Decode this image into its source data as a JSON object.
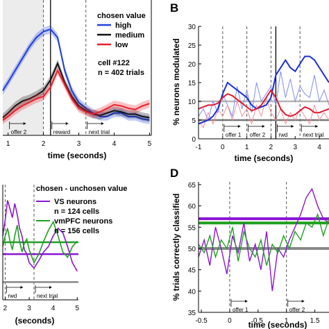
{
  "chart_data": [
    {
      "panel": "A",
      "type": "line",
      "xlabel": "time (seconds)",
      "xlim": [
        0.85,
        5.05
      ],
      "ylim": [
        0,
        1
      ],
      "x_ticks": [
        "1",
        "2",
        "3",
        "4",
        "5"
      ],
      "shaded_region": [
        0.85,
        2.0
      ],
      "event_lines": [
        2.0,
        2.2,
        3.2
      ],
      "event_labels": [
        "offer 2",
        "reward",
        "next trial"
      ],
      "legend_title": "chosen value",
      "annotations": [
        "cell #122",
        "n = 402 trials"
      ],
      "colors": {
        "high": "#1f3fe0",
        "medium": "#111111",
        "low": "#e8202a"
      },
      "series": [
        {
          "name": "high",
          "x": [
            0.85,
            1.0,
            1.2,
            1.4,
            1.6,
            1.8,
            2.0,
            2.2,
            2.4,
            2.6,
            2.8,
            3.0,
            3.2,
            3.4,
            3.6,
            3.8,
            4.0,
            4.2,
            4.4,
            4.6,
            4.8,
            5.0
          ],
          "values": [
            0.35,
            0.42,
            0.52,
            0.62,
            0.72,
            0.8,
            0.85,
            0.87,
            0.8,
            0.52,
            0.35,
            0.25,
            0.2,
            0.16,
            0.13,
            0.13,
            0.16,
            0.16,
            0.13,
            0.13,
            0.11,
            0.1
          ]
        },
        {
          "name": "medium",
          "x": [
            0.85,
            1.0,
            1.2,
            1.4,
            1.6,
            1.8,
            2.0,
            2.2,
            2.4,
            2.6,
            2.8,
            3.0,
            3.2,
            3.4,
            3.6,
            3.8,
            4.0,
            4.2,
            4.4,
            4.6,
            4.8,
            5.0
          ],
          "values": [
            0.12,
            0.16,
            0.22,
            0.26,
            0.28,
            0.31,
            0.35,
            0.44,
            0.58,
            0.42,
            0.3,
            0.22,
            0.18,
            0.15,
            0.14,
            0.16,
            0.18,
            0.17,
            0.15,
            0.15,
            0.13,
            0.12
          ]
        },
        {
          "name": "low",
          "x": [
            0.85,
            1.0,
            1.2,
            1.4,
            1.6,
            1.8,
            2.0,
            2.2,
            2.4,
            2.6,
            2.8,
            3.0,
            3.2,
            3.4,
            3.6,
            3.8,
            4.0,
            4.2,
            4.4,
            4.6,
            4.8,
            5.0
          ],
          "values": [
            0.1,
            0.13,
            0.18,
            0.22,
            0.25,
            0.28,
            0.3,
            0.38,
            0.52,
            0.4,
            0.28,
            0.2,
            0.17,
            0.15,
            0.17,
            0.2,
            0.23,
            0.22,
            0.2,
            0.19,
            0.22,
            0.24
          ]
        }
      ]
    },
    {
      "panel": "B",
      "type": "line",
      "ylabel": "% neurons modulated",
      "xlabel": "time (seconds)",
      "xlim": [
        -1,
        4.4
      ],
      "ylim": [
        0,
        30
      ],
      "x_ticks": [
        "-1",
        "0",
        "1",
        "2",
        "3",
        "4"
      ],
      "y_ticks": [
        "0",
        "5",
        "10",
        "15",
        "20",
        "25",
        "30"
      ],
      "event_lines": [
        0,
        1,
        2,
        2.2,
        3.2
      ],
      "event_labels": [
        "offer 1",
        "offer 2",
        "rwd",
        "next trial"
      ],
      "reference_lines": [
        {
          "y": 10,
          "color": "#b3b3b3"
        },
        {
          "y": 5,
          "color": "#777777"
        }
      ],
      "colors": {
        "blue": "#1a2fd6",
        "red": "#e01b2d",
        "light_blue": "#7d8cf5",
        "light_red": "#f0909a"
      },
      "series": [
        {
          "name": "",
          "x": [
            -1,
            -0.8,
            -0.6,
            -0.4,
            -0.2,
            0,
            0.2,
            0.4,
            0.6,
            0.8,
            1.0,
            1.2,
            1.4,
            1.6,
            1.8,
            2.0,
            2.2,
            2.4,
            2.6,
            2.8,
            3.0,
            3.2,
            3.4,
            3.6,
            3.8,
            4.0,
            4.2,
            4.4
          ],
          "values": [
            4,
            4.5,
            5,
            6,
            8,
            12,
            15,
            14,
            13,
            12,
            11,
            9,
            8,
            8.5,
            9,
            11,
            17,
            19,
            21,
            19,
            18,
            20,
            22,
            22,
            21,
            19,
            17,
            15
          ]
        },
        {
          "name": "",
          "x": [
            -1,
            -0.8,
            -0.6,
            -0.4,
            -0.2,
            0,
            0.2,
            0.4,
            0.6,
            0.8,
            1.0,
            1.2,
            1.4,
            1.6,
            1.8,
            2.0,
            2.2,
            2.4,
            2.6,
            2.8,
            3.0,
            3.2,
            3.4,
            3.6,
            3.8,
            4.0,
            4.2,
            4.4
          ],
          "values": [
            8,
            8.5,
            9,
            9,
            9.5,
            11,
            12,
            11.5,
            10.5,
            9.5,
            8.5,
            7.5,
            8,
            9,
            11,
            13,
            11,
            8,
            6.5,
            6,
            6.5,
            7.5,
            8.5,
            8,
            7,
            7,
            7.5,
            8
          ]
        },
        {
          "name": "",
          "x": [
            -1,
            -0.8,
            -0.6,
            -0.4,
            -0.2,
            0,
            0.2,
            0.4,
            0.6,
            0.8,
            1.0,
            1.2,
            1.4,
            1.6,
            1.8,
            2.0,
            2.2,
            2.4,
            2.6,
            2.8,
            3.0,
            3.2,
            3.4,
            3.6,
            3.8,
            4.0,
            4.2,
            4.4
          ],
          "values": [
            6,
            8,
            5,
            10,
            7,
            12,
            9,
            6,
            14,
            8,
            13,
            7,
            15,
            10,
            12,
            14,
            9,
            18,
            11,
            16,
            10,
            14,
            12,
            11,
            17,
            10,
            13,
            9
          ]
        },
        {
          "name": "",
          "x": [
            -1,
            -0.8,
            -0.6,
            -0.4,
            -0.2,
            0,
            0.2,
            0.4,
            0.6,
            0.8,
            1.0,
            1.2,
            1.4,
            1.6,
            1.8,
            2.0,
            2.2,
            2.4,
            2.6,
            2.8,
            3.0,
            3.2,
            3.4,
            3.6,
            3.8,
            4.0,
            4.2,
            4.4
          ],
          "values": [
            5,
            3,
            7,
            4,
            8,
            6,
            9,
            5,
            10,
            6,
            8,
            4,
            9,
            6,
            11,
            7,
            5,
            8,
            4,
            7,
            5,
            8,
            6,
            4,
            9,
            5,
            7,
            5
          ]
        }
      ]
    },
    {
      "panel": "C",
      "type": "line",
      "xlabel": "(seconds)",
      "xlim": [
        1.9,
        5.05
      ],
      "ylim": [
        0,
        1
      ],
      "x_ticks": [
        "2",
        "3",
        "4",
        "5"
      ],
      "event_lines": [
        2.0,
        3.2
      ],
      "event_labels": [
        "rwd",
        "next trial"
      ],
      "legend_title": "chosen - unchosen value",
      "colors": {
        "vs": "#8a14d4",
        "vmpfc": "#1ea01e"
      },
      "reference_lines": [
        {
          "y": 0.49,
          "color": "#1ea01e"
        },
        {
          "y": 0.38,
          "color": "#8a14d4"
        },
        {
          "y": 0.12,
          "color": "#888888"
        }
      ],
      "series": [
        {
          "name": "VS neurons",
          "legend": "n = 124 cells",
          "x": [
            1.9,
            2.0,
            2.1,
            2.2,
            2.3,
            2.4,
            2.5,
            2.6,
            2.7,
            2.8,
            2.9,
            3.0,
            3.2,
            3.4,
            3.6,
            3.8,
            4.0,
            4.2,
            4.4,
            4.6,
            4.8,
            5.0
          ],
          "values": [
            0.55,
            0.7,
            0.88,
            0.8,
            0.72,
            0.85,
            0.75,
            0.62,
            0.55,
            0.42,
            0.38,
            0.3,
            0.25,
            0.32,
            0.4,
            0.45,
            0.55,
            0.62,
            0.58,
            0.45,
            0.3,
            0.22
          ]
        },
        {
          "name": "vmPFC neurons",
          "legend": "n = 156 cells",
          "x": [
            1.9,
            2.0,
            2.1,
            2.2,
            2.3,
            2.4,
            2.5,
            2.6,
            2.7,
            2.8,
            2.9,
            3.0,
            3.2,
            3.4,
            3.6,
            3.8,
            4.0,
            4.2,
            4.4,
            4.6,
            4.8,
            5.0
          ],
          "values": [
            0.45,
            0.55,
            0.62,
            0.5,
            0.42,
            0.55,
            0.65,
            0.5,
            0.4,
            0.48,
            0.52,
            0.42,
            0.3,
            0.38,
            0.5,
            0.6,
            0.68,
            0.55,
            0.4,
            0.35,
            0.45,
            0.5
          ]
        }
      ]
    },
    {
      "panel": "D",
      "type": "line",
      "ylabel": "% trials correctly classified",
      "xlabel": "time (seconds)",
      "xlim": [
        -0.55,
        1.75
      ],
      "ylim": [
        35,
        65
      ],
      "x_ticks": [
        "-0.5",
        "0",
        "0.5",
        "1",
        "1.5"
      ],
      "y_ticks": [
        "35",
        "40",
        "45",
        "50",
        "55",
        "60",
        "65"
      ],
      "event_lines": [
        0,
        1
      ],
      "event_labels": [
        "offer 1",
        "offer 2"
      ],
      "reference_lines": [
        {
          "y": 57,
          "color": "#8a14d4"
        },
        {
          "y": 56,
          "color": "#1ea01e"
        },
        {
          "y": 50,
          "color": "#888888"
        }
      ],
      "colors": {
        "vs": "#8a14d4",
        "vmpfc": "#1ea01e"
      },
      "series": [
        {
          "name": "",
          "x": [
            -0.55,
            -0.45,
            -0.35,
            -0.25,
            -0.15,
            -0.05,
            0.05,
            0.15,
            0.25,
            0.35,
            0.45,
            0.55,
            0.65,
            0.75,
            0.85,
            0.95,
            1.05,
            1.15,
            1.25,
            1.35,
            1.45,
            1.55,
            1.65,
            1.75
          ],
          "values": [
            48,
            52,
            46,
            55,
            50,
            44,
            53,
            49,
            56,
            47,
            51,
            45,
            54,
            40,
            50,
            48,
            52,
            55,
            58,
            62,
            64,
            60,
            57,
            56
          ]
        },
        {
          "name": "",
          "x": [
            -0.55,
            -0.45,
            -0.35,
            -0.25,
            -0.15,
            -0.05,
            0.05,
            0.15,
            0.25,
            0.35,
            0.45,
            0.55,
            0.65,
            0.75,
            0.85,
            0.95,
            1.05,
            1.15,
            1.25,
            1.35,
            1.45,
            1.55,
            1.65,
            1.75
          ],
          "values": [
            51,
            49,
            53,
            48,
            52,
            50,
            55,
            47,
            54,
            50,
            48,
            52,
            46,
            51,
            49,
            53,
            50,
            54,
            52,
            56,
            55,
            58,
            53,
            57
          ]
        }
      ]
    }
  ]
}
